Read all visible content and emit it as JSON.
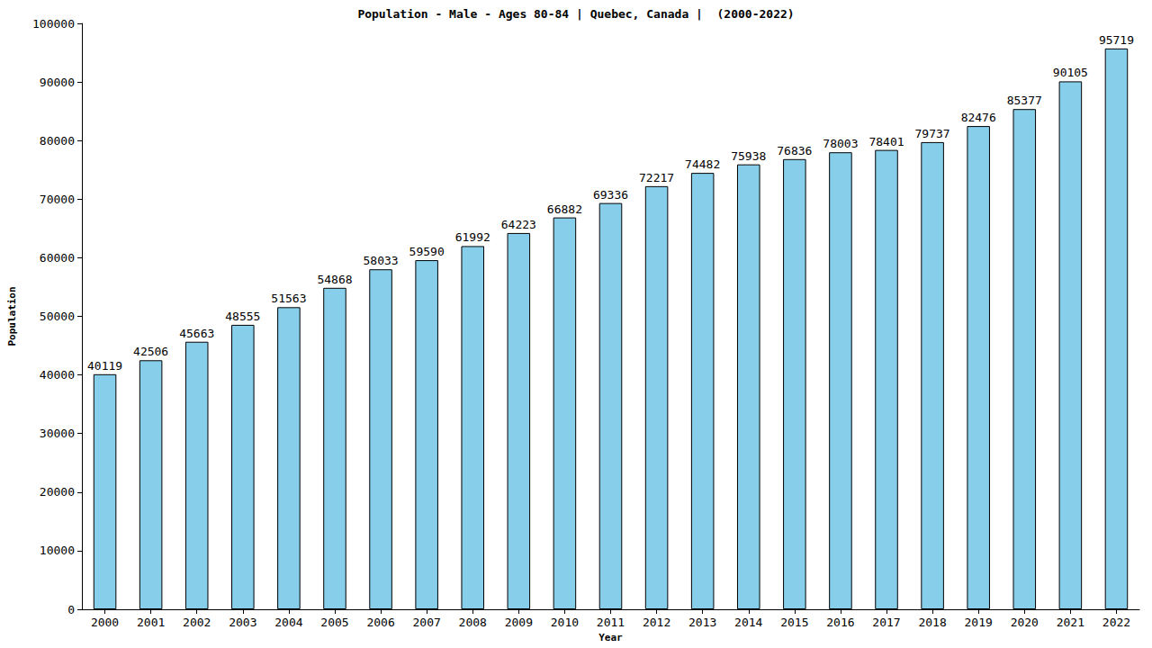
{
  "chart_data": {
    "type": "bar",
    "title": "Population - Male - Ages 80-84 | Quebec, Canada |  (2000-2022)",
    "x_label": "Year",
    "y_label": "Population",
    "categories": [
      "2000",
      "2001",
      "2002",
      "2003",
      "2004",
      "2005",
      "2006",
      "2007",
      "2008",
      "2009",
      "2010",
      "2011",
      "2012",
      "2013",
      "2014",
      "2015",
      "2016",
      "2017",
      "2018",
      "2019",
      "2020",
      "2021",
      "2022"
    ],
    "values": [
      40119,
      42506,
      45663,
      48555,
      51563,
      54868,
      58033,
      59590,
      61992,
      64223,
      66882,
      69336,
      72217,
      74482,
      75938,
      76836,
      78003,
      78401,
      79737,
      82476,
      85377,
      90105,
      95719
    ],
    "color": "#87ceeb",
    "ylim": [
      0,
      100000
    ],
    "yticks": [
      0,
      10000,
      20000,
      30000,
      40000,
      50000,
      60000,
      70000,
      80000,
      90000,
      100000
    ],
    "grid": false,
    "data_labels": true
  }
}
